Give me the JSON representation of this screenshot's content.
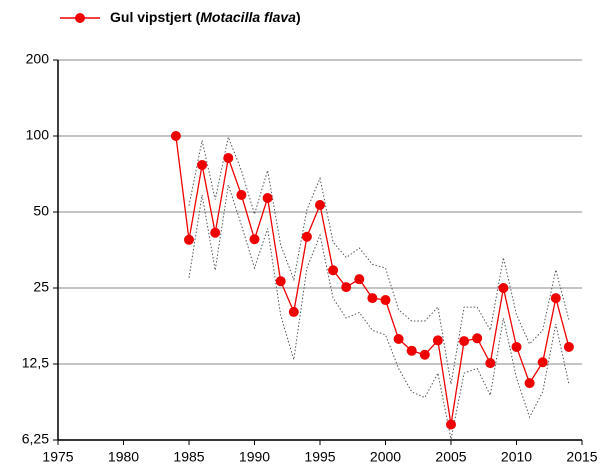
{
  "chart_data": {
    "type": "line",
    "x": [
      1984,
      1985,
      1986,
      1987,
      1988,
      1989,
      1990,
      1991,
      1992,
      1993,
      1994,
      1995,
      1996,
      1997,
      1998,
      1999,
      2000,
      2001,
      2002,
      2003,
      2004,
      2005,
      2006,
      2007,
      2008,
      2009,
      2010,
      2011,
      2012,
      2013,
      2014
    ],
    "series": [
      {
        "name": "Gul vipstjert (Motacilla flava)",
        "color": "#ee0000",
        "values": [
          100,
          38.8,
          76.8,
          41.4,
          81.8,
          58.4,
          39,
          56.8,
          26.6,
          20.1,
          39.9,
          53.3,
          29.4,
          25.2,
          27.1,
          22.8,
          22.4,
          15.7,
          14.1,
          13.6,
          15.5,
          7.2,
          15.4,
          15.8,
          12.6,
          25,
          14.6,
          10.5,
          12.7,
          22.8,
          14.6
        ]
      }
    ],
    "band": {
      "color": "#555555",
      "upper": [
        null,
        53,
        96,
        56,
        99,
        73,
        49,
        73,
        37,
        27,
        51,
        68,
        38,
        33,
        36,
        31,
        30,
        20.5,
        18.5,
        18.5,
        21,
        10.4,
        21,
        21,
        17,
        33,
        19.6,
        15,
        17,
        29.5,
        18.7
      ],
      "lower": [
        null,
        27.4,
        58.4,
        29.4,
        64,
        44.4,
        30,
        43,
        19.5,
        13,
        30,
        40.5,
        22.8,
        19,
        20,
        17,
        16.3,
        12,
        9.7,
        9.2,
        11.5,
        6.3,
        11.5,
        12,
        9.4,
        19,
        11,
        7.7,
        9.7,
        18,
        10.4
      ]
    },
    "xlim": [
      1975,
      2015
    ],
    "xticks": [
      1975,
      1980,
      1985,
      1990,
      1995,
      2000,
      2005,
      2010,
      2015
    ],
    "ylim": [
      6.25,
      200
    ],
    "log_y": true,
    "yticks": [
      {
        "value": 6.25,
        "label": "6,25"
      },
      {
        "value": 12.5,
        "label": "12,5"
      },
      25,
      50,
      100,
      200
    ],
    "grid": true,
    "legend": "top-left"
  }
}
